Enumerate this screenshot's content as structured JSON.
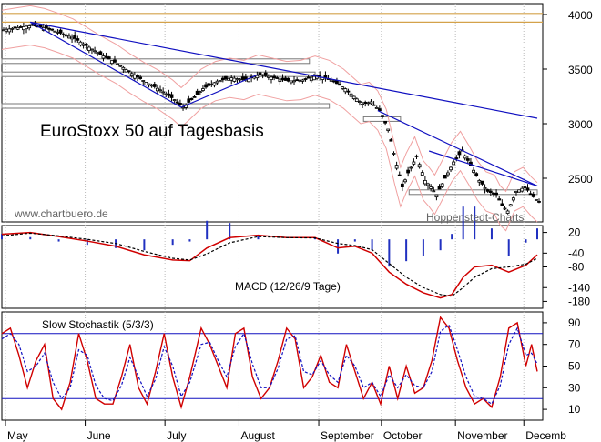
{
  "chart_data": [
    {
      "type": "candlestick",
      "title": "EuroStoxx 50 auf Tagesbasis",
      "watermark_left": "www.chartbuero.de",
      "watermark_right": "Hoppenstedt-Charts",
      "y_ticks": [
        2500,
        3000,
        3500,
        4000
      ],
      "ylim": [
        2100,
        4100
      ],
      "months": [
        "May",
        "June",
        "July",
        "August",
        "September",
        "October",
        "November",
        "Decemb"
      ],
      "horizontal_levels": [
        3930,
        4010
      ],
      "price_path": [
        [
          0,
          3860
        ],
        [
          5,
          3880
        ],
        [
          10,
          3900
        ],
        [
          15,
          3875
        ],
        [
          20,
          3830
        ],
        [
          25,
          3780
        ],
        [
          30,
          3700
        ],
        [
          35,
          3620
        ],
        [
          40,
          3550
        ],
        [
          45,
          3460
        ],
        [
          50,
          3380
        ],
        [
          55,
          3310
        ],
        [
          60,
          3220
        ],
        [
          63,
          3150
        ],
        [
          66,
          3220
        ],
        [
          70,
          3320
        ],
        [
          75,
          3390
        ],
        [
          80,
          3420
        ],
        [
          85,
          3400
        ],
        [
          90,
          3450
        ],
        [
          95,
          3420
        ],
        [
          100,
          3390
        ],
        [
          105,
          3400
        ],
        [
          110,
          3440
        ],
        [
          115,
          3400
        ],
        [
          120,
          3320
        ],
        [
          123,
          3250
        ],
        [
          126,
          3180
        ],
        [
          129,
          3200
        ],
        [
          132,
          3120
        ],
        [
          135,
          2950
        ],
        [
          138,
          2620
        ],
        [
          140,
          2420
        ],
        [
          142,
          2550
        ],
        [
          145,
          2700
        ],
        [
          148,
          2480
        ],
        [
          150,
          2420
        ],
        [
          152,
          2350
        ],
        [
          155,
          2500
        ],
        [
          158,
          2650
        ],
        [
          161,
          2750
        ],
        [
          164,
          2620
        ],
        [
          167,
          2480
        ],
        [
          170,
          2380
        ],
        [
          173,
          2350
        ],
        [
          175,
          2250
        ],
        [
          177,
          2200
        ],
        [
          180,
          2380
        ],
        [
          183,
          2420
        ],
        [
          186,
          2330
        ],
        [
          188,
          2280
        ]
      ]
    },
    {
      "type": "line",
      "label": "MACD (12/26/9 Tage)",
      "y_ticks": [
        20,
        -40,
        -80,
        -140,
        -180
      ],
      "ylim": [
        -200,
        40
      ],
      "macd": [
        [
          0,
          15
        ],
        [
          10,
          20
        ],
        [
          20,
          8
        ],
        [
          30,
          -5
        ],
        [
          40,
          -20
        ],
        [
          50,
          -45
        ],
        [
          60,
          -60
        ],
        [
          66,
          -62
        ],
        [
          72,
          -25
        ],
        [
          80,
          5
        ],
        [
          90,
          12
        ],
        [
          100,
          5
        ],
        [
          110,
          5
        ],
        [
          118,
          -25
        ],
        [
          124,
          -20
        ],
        [
          130,
          -40
        ],
        [
          136,
          -95
        ],
        [
          142,
          -130
        ],
        [
          148,
          -155
        ],
        [
          154,
          -170
        ],
        [
          158,
          -160
        ],
        [
          162,
          -110
        ],
        [
          166,
          -80
        ],
        [
          172,
          -75
        ],
        [
          178,
          -95
        ],
        [
          184,
          -75
        ],
        [
          188,
          -45
        ]
      ],
      "signal": [
        [
          0,
          10
        ],
        [
          10,
          18
        ],
        [
          20,
          10
        ],
        [
          30,
          0
        ],
        [
          40,
          -12
        ],
        [
          50,
          -35
        ],
        [
          60,
          -55
        ],
        [
          66,
          -60
        ],
        [
          72,
          -42
        ],
        [
          80,
          -10
        ],
        [
          90,
          8
        ],
        [
          100,
          5
        ],
        [
          110,
          4
        ],
        [
          118,
          -12
        ],
        [
          124,
          -18
        ],
        [
          130,
          -30
        ],
        [
          136,
          -70
        ],
        [
          142,
          -110
        ],
        [
          148,
          -140
        ],
        [
          154,
          -160
        ],
        [
          158,
          -165
        ],
        [
          162,
          -140
        ],
        [
          166,
          -110
        ],
        [
          172,
          -85
        ],
        [
          178,
          -80
        ],
        [
          184,
          -72
        ],
        [
          188,
          -55
        ]
      ]
    },
    {
      "type": "line",
      "label": "Slow Stochastik (5/3/3)",
      "y_ticks": [
        90,
        70,
        50,
        30,
        10
      ],
      "ylim": [
        0,
        100
      ],
      "reference_lines": [
        20,
        80
      ],
      "k": [
        [
          0,
          80
        ],
        [
          3,
          85
        ],
        [
          6,
          60
        ],
        [
          9,
          30
        ],
        [
          12,
          55
        ],
        [
          15,
          70
        ],
        [
          18,
          20
        ],
        [
          21,
          10
        ],
        [
          24,
          35
        ],
        [
          27,
          80
        ],
        [
          30,
          55
        ],
        [
          33,
          20
        ],
        [
          36,
          15
        ],
        [
          39,
          15
        ],
        [
          42,
          40
        ],
        [
          45,
          70
        ],
        [
          48,
          30
        ],
        [
          51,
          15
        ],
        [
          54,
          45
        ],
        [
          57,
          80
        ],
        [
          60,
          40
        ],
        [
          63,
          12
        ],
        [
          66,
          40
        ],
        [
          70,
          85
        ],
        [
          73,
          70
        ],
        [
          76,
          50
        ],
        [
          79,
          30
        ],
        [
          82,
          80
        ],
        [
          85,
          85
        ],
        [
          88,
          40
        ],
        [
          91,
          20
        ],
        [
          94,
          30
        ],
        [
          97,
          55
        ],
        [
          100,
          85
        ],
        [
          103,
          75
        ],
        [
          106,
          30
        ],
        [
          109,
          40
        ],
        [
          112,
          60
        ],
        [
          115,
          35
        ],
        [
          118,
          30
        ],
        [
          121,
          70
        ],
        [
          124,
          45
        ],
        [
          127,
          20
        ],
        [
          130,
          35
        ],
        [
          133,
          15
        ],
        [
          136,
          50
        ],
        [
          139,
          20
        ],
        [
          142,
          50
        ],
        [
          145,
          25
        ],
        [
          148,
          30
        ],
        [
          151,
          55
        ],
        [
          154,
          95
        ],
        [
          157,
          85
        ],
        [
          160,
          55
        ],
        [
          163,
          30
        ],
        [
          166,
          15
        ],
        [
          169,
          20
        ],
        [
          172,
          12
        ],
        [
          175,
          40
        ],
        [
          178,
          85
        ],
        [
          181,
          90
        ],
        [
          184,
          50
        ],
        [
          186,
          70
        ],
        [
          188,
          45
        ]
      ],
      "d": [
        [
          0,
          75
        ],
        [
          3,
          80
        ],
        [
          6,
          70
        ],
        [
          9,
          45
        ],
        [
          12,
          50
        ],
        [
          15,
          62
        ],
        [
          18,
          35
        ],
        [
          21,
          20
        ],
        [
          24,
          30
        ],
        [
          27,
          65
        ],
        [
          30,
          60
        ],
        [
          33,
          32
        ],
        [
          36,
          20
        ],
        [
          39,
          18
        ],
        [
          42,
          32
        ],
        [
          45,
          58
        ],
        [
          48,
          40
        ],
        [
          51,
          22
        ],
        [
          54,
          38
        ],
        [
          57,
          68
        ],
        [
          60,
          50
        ],
        [
          63,
          22
        ],
        [
          66,
          35
        ],
        [
          70,
          70
        ],
        [
          73,
          72
        ],
        [
          76,
          55
        ],
        [
          79,
          40
        ],
        [
          82,
          68
        ],
        [
          85,
          80
        ],
        [
          88,
          52
        ],
        [
          91,
          30
        ],
        [
          94,
          30
        ],
        [
          97,
          48
        ],
        [
          100,
          75
        ],
        [
          103,
          78
        ],
        [
          106,
          45
        ],
        [
          109,
          42
        ],
        [
          112,
          55
        ],
        [
          115,
          42
        ],
        [
          118,
          35
        ],
        [
          121,
          60
        ],
        [
          124,
          50
        ],
        [
          127,
          30
        ],
        [
          130,
          35
        ],
        [
          133,
          22
        ],
        [
          136,
          42
        ],
        [
          139,
          30
        ],
        [
          142,
          42
        ],
        [
          145,
          32
        ],
        [
          148,
          30
        ],
        [
          151,
          45
        ],
        [
          154,
          82
        ],
        [
          157,
          88
        ],
        [
          160,
          65
        ],
        [
          163,
          40
        ],
        [
          166,
          22
        ],
        [
          169,
          20
        ],
        [
          172,
          15
        ],
        [
          175,
          32
        ],
        [
          178,
          70
        ],
        [
          181,
          85
        ],
        [
          184,
          60
        ],
        [
          186,
          62
        ],
        [
          188,
          52
        ]
      ]
    }
  ]
}
